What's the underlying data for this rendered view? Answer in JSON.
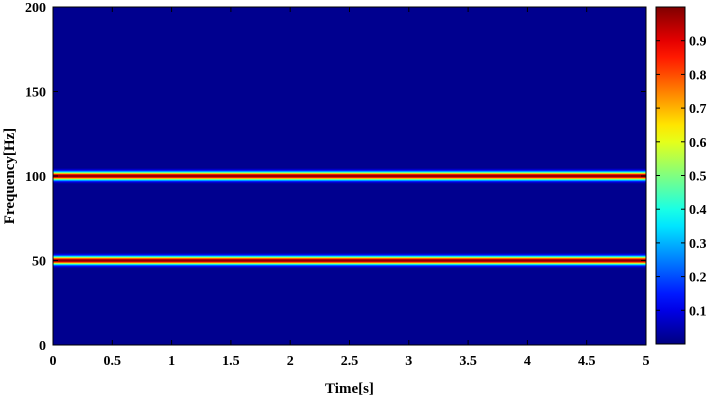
{
  "chart_data": {
    "type": "heatmap",
    "title": "",
    "xlabel": "Time[s]",
    "ylabel": "Frequency[Hz]",
    "xlim": [
      0,
      5
    ],
    "ylim": [
      0,
      200
    ],
    "x_ticks": [
      0,
      0.5,
      1,
      1.5,
      2,
      2.5,
      3,
      3.5,
      4,
      4.5,
      5
    ],
    "x_tick_labels": [
      "0",
      "0.5",
      "1",
      "1.5",
      "2",
      "2.5",
      "3",
      "3.5",
      "4",
      "4.5",
      "5"
    ],
    "y_ticks": [
      0,
      50,
      100,
      150,
      200
    ],
    "y_tick_labels": [
      "0",
      "50",
      "100",
      "150",
      "200"
    ],
    "colormap": "jet",
    "colorbar": {
      "min": 0,
      "max": 1,
      "ticks": [
        0.1,
        0.2,
        0.3,
        0.4,
        0.5,
        0.6,
        0.7,
        0.8,
        0.9
      ],
      "tick_labels": [
        "0.1",
        "0.2",
        "0.3",
        "0.4",
        "0.5",
        "0.6",
        "0.7",
        "0.8",
        "0.9"
      ]
    },
    "ridges": [
      {
        "frequency_hz": 50,
        "peak_value": 1.0,
        "half_width_hz": 5
      },
      {
        "frequency_hz": 100,
        "peak_value": 1.0,
        "half_width_hz": 5
      }
    ],
    "grid": false
  }
}
